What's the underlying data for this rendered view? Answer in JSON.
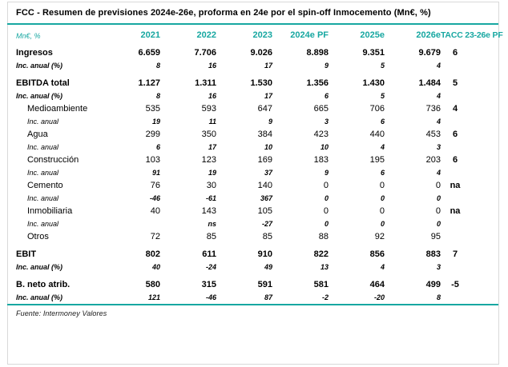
{
  "title": "FCC - Resumen de previsiones 2024e-26e, proforma en 24e por el spin-off Inmocemento (Mn€, %)",
  "colors": {
    "accent": "#17a7a1",
    "frame_border": "#d9d9d9"
  },
  "table": {
    "columns": {
      "unit": "Mn€, %",
      "years": [
        "2021",
        "2022",
        "2023",
        "2024e PF",
        "2025e",
        "2026e"
      ],
      "tacc": "TACC 23-26e PF"
    },
    "rows": [
      {
        "label": "Ingresos",
        "style": "main",
        "gap": false,
        "values": [
          "6.659",
          "7.706",
          "9.026",
          "8.898",
          "9.351",
          "9.679"
        ],
        "tacc": "6"
      },
      {
        "label": "Inc. anual (%)",
        "style": "inc-main",
        "gap": false,
        "values": [
          "8",
          "16",
          "17",
          "9",
          "5",
          "4"
        ],
        "tacc": ""
      },
      {
        "label": "EBITDA total",
        "style": "main",
        "gap": true,
        "values": [
          "1.127",
          "1.311",
          "1.530",
          "1.356",
          "1.430",
          "1.484"
        ],
        "tacc": "5"
      },
      {
        "label": "Inc. anual (%)",
        "style": "inc-main",
        "gap": false,
        "values": [
          "8",
          "16",
          "17",
          "6",
          "5",
          "4"
        ],
        "tacc": ""
      },
      {
        "label": "Medioambiente",
        "style": "sub",
        "gap": false,
        "values": [
          "535",
          "593",
          "647",
          "665",
          "706",
          "736"
        ],
        "tacc": "4"
      },
      {
        "label": "Inc. anual",
        "style": "inc-sub",
        "gap": false,
        "values": [
          "19",
          "11",
          "9",
          "3",
          "6",
          "4"
        ],
        "tacc": ""
      },
      {
        "label": "Agua",
        "style": "sub",
        "gap": false,
        "values": [
          "299",
          "350",
          "384",
          "423",
          "440",
          "453"
        ],
        "tacc": "6"
      },
      {
        "label": "Inc. anual",
        "style": "inc-sub",
        "gap": false,
        "values": [
          "6",
          "17",
          "10",
          "10",
          "4",
          "3"
        ],
        "tacc": ""
      },
      {
        "label": "Construcción",
        "style": "sub",
        "gap": false,
        "values": [
          "103",
          "123",
          "169",
          "183",
          "195",
          "203"
        ],
        "tacc": "6"
      },
      {
        "label": "Inc. anual",
        "style": "inc-sub",
        "gap": false,
        "values": [
          "91",
          "19",
          "37",
          "9",
          "6",
          "4"
        ],
        "tacc": ""
      },
      {
        "label": "Cemento",
        "style": "sub",
        "gap": false,
        "values": [
          "76",
          "30",
          "140",
          "0",
          "0",
          "0"
        ],
        "tacc": "na"
      },
      {
        "label": "Inc. anual",
        "style": "inc-sub",
        "gap": false,
        "values": [
          "-46",
          "-61",
          "367",
          "0",
          "0",
          "0"
        ],
        "tacc": ""
      },
      {
        "label": "Inmobiliaria",
        "style": "sub",
        "gap": false,
        "values": [
          "40",
          "143",
          "105",
          "0",
          "0",
          "0"
        ],
        "tacc": "na"
      },
      {
        "label": "Inc. anual",
        "style": "inc-sub",
        "gap": false,
        "values": [
          "",
          "ns",
          "-27",
          "0",
          "0",
          "0"
        ],
        "tacc": ""
      },
      {
        "label": "Otros",
        "style": "sub",
        "gap": false,
        "values": [
          "72",
          "85",
          "85",
          "88",
          "92",
          "95"
        ],
        "tacc": ""
      },
      {
        "label": "EBIT",
        "style": "main",
        "gap": true,
        "values": [
          "802",
          "611",
          "910",
          "822",
          "856",
          "883"
        ],
        "tacc": "7"
      },
      {
        "label": "Inc. anual (%)",
        "style": "inc-main",
        "gap": false,
        "values": [
          "40",
          "-24",
          "49",
          "13",
          "4",
          "3"
        ],
        "tacc": ""
      },
      {
        "label": "B. neto atrib.",
        "style": "main",
        "gap": true,
        "values": [
          "580",
          "315",
          "591",
          "581",
          "464",
          "499"
        ],
        "tacc": "-5"
      },
      {
        "label": "Inc. anual (%)",
        "style": "inc-main",
        "gap": false,
        "values": [
          "121",
          "-46",
          "87",
          "-2",
          "-20",
          "8"
        ],
        "tacc": ""
      }
    ]
  },
  "footer": {
    "source": "Fuente: Intermoney Valores"
  }
}
